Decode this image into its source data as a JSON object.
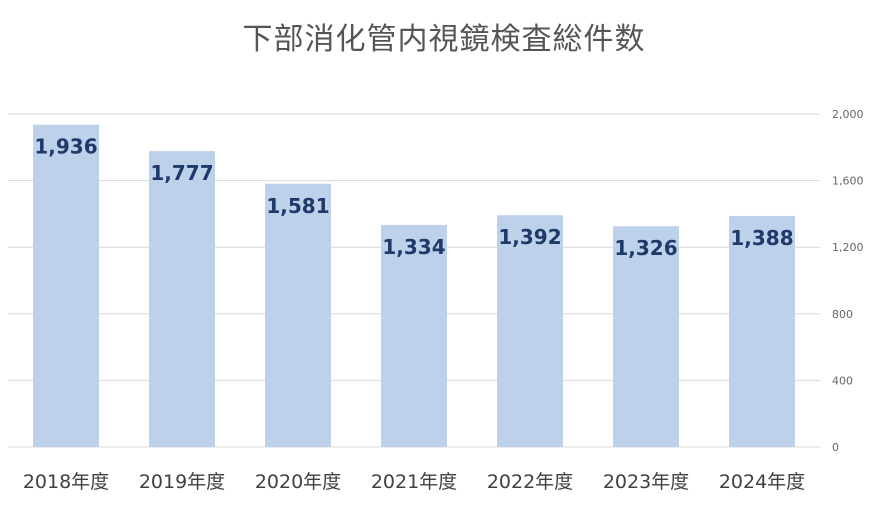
{
  "chart_data": {
    "type": "bar",
    "title": "下部消化管内視鏡検査総件数",
    "categories": [
      "2018年度",
      "2019年度",
      "2020年度",
      "2021年度",
      "2022年度",
      "2023年度",
      "2024年度"
    ],
    "values": [
      1936,
      1777,
      1581,
      1334,
      1392,
      1326,
      1388
    ],
    "data_labels": [
      "1,936",
      "1,777",
      "1,581",
      "1,334",
      "1,392",
      "1,326",
      "1,388"
    ],
    "xlabel": "",
    "ylabel": "",
    "ylim": [
      0,
      2000
    ],
    "yticks": [
      0,
      400,
      800,
      1200,
      1600,
      2000
    ],
    "ytick_labels": [
      "0",
      "400",
      "800",
      "1,200",
      "1,600",
      "2,000"
    ],
    "y_axis_side": "right",
    "grid": true,
    "legend": "none",
    "colors": {
      "bar": "#bdd1ea",
      "data_label": "#1f3a6a",
      "grid": "#d9d9d9",
      "title": "#555555"
    }
  }
}
